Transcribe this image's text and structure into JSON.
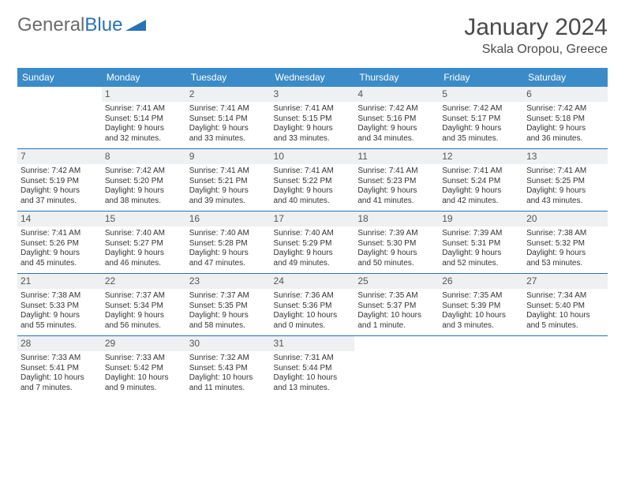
{
  "brand": {
    "part1": "General",
    "part2": "Blue"
  },
  "title": "January 2024",
  "location": "Skala Oropou, Greece",
  "colors": {
    "header_bg": "#3b8bc8",
    "header_text": "#ffffff",
    "border": "#2a72b5",
    "daynum_bg": "#eef0f1",
    "text": "#333333",
    "brand_gray": "#6b6b6b",
    "brand_blue": "#2a72b5"
  },
  "weekdays": [
    "Sunday",
    "Monday",
    "Tuesday",
    "Wednesday",
    "Thursday",
    "Friday",
    "Saturday"
  ],
  "weeks": [
    [
      null,
      {
        "n": "1",
        "sr": "Sunrise: 7:41 AM",
        "ss": "Sunset: 5:14 PM",
        "d1": "Daylight: 9 hours",
        "d2": "and 32 minutes."
      },
      {
        "n": "2",
        "sr": "Sunrise: 7:41 AM",
        "ss": "Sunset: 5:14 PM",
        "d1": "Daylight: 9 hours",
        "d2": "and 33 minutes."
      },
      {
        "n": "3",
        "sr": "Sunrise: 7:41 AM",
        "ss": "Sunset: 5:15 PM",
        "d1": "Daylight: 9 hours",
        "d2": "and 33 minutes."
      },
      {
        "n": "4",
        "sr": "Sunrise: 7:42 AM",
        "ss": "Sunset: 5:16 PM",
        "d1": "Daylight: 9 hours",
        "d2": "and 34 minutes."
      },
      {
        "n": "5",
        "sr": "Sunrise: 7:42 AM",
        "ss": "Sunset: 5:17 PM",
        "d1": "Daylight: 9 hours",
        "d2": "and 35 minutes."
      },
      {
        "n": "6",
        "sr": "Sunrise: 7:42 AM",
        "ss": "Sunset: 5:18 PM",
        "d1": "Daylight: 9 hours",
        "d2": "and 36 minutes."
      }
    ],
    [
      {
        "n": "7",
        "sr": "Sunrise: 7:42 AM",
        "ss": "Sunset: 5:19 PM",
        "d1": "Daylight: 9 hours",
        "d2": "and 37 minutes."
      },
      {
        "n": "8",
        "sr": "Sunrise: 7:42 AM",
        "ss": "Sunset: 5:20 PM",
        "d1": "Daylight: 9 hours",
        "d2": "and 38 minutes."
      },
      {
        "n": "9",
        "sr": "Sunrise: 7:41 AM",
        "ss": "Sunset: 5:21 PM",
        "d1": "Daylight: 9 hours",
        "d2": "and 39 minutes."
      },
      {
        "n": "10",
        "sr": "Sunrise: 7:41 AM",
        "ss": "Sunset: 5:22 PM",
        "d1": "Daylight: 9 hours",
        "d2": "and 40 minutes."
      },
      {
        "n": "11",
        "sr": "Sunrise: 7:41 AM",
        "ss": "Sunset: 5:23 PM",
        "d1": "Daylight: 9 hours",
        "d2": "and 41 minutes."
      },
      {
        "n": "12",
        "sr": "Sunrise: 7:41 AM",
        "ss": "Sunset: 5:24 PM",
        "d1": "Daylight: 9 hours",
        "d2": "and 42 minutes."
      },
      {
        "n": "13",
        "sr": "Sunrise: 7:41 AM",
        "ss": "Sunset: 5:25 PM",
        "d1": "Daylight: 9 hours",
        "d2": "and 43 minutes."
      }
    ],
    [
      {
        "n": "14",
        "sr": "Sunrise: 7:41 AM",
        "ss": "Sunset: 5:26 PM",
        "d1": "Daylight: 9 hours",
        "d2": "and 45 minutes."
      },
      {
        "n": "15",
        "sr": "Sunrise: 7:40 AM",
        "ss": "Sunset: 5:27 PM",
        "d1": "Daylight: 9 hours",
        "d2": "and 46 minutes."
      },
      {
        "n": "16",
        "sr": "Sunrise: 7:40 AM",
        "ss": "Sunset: 5:28 PM",
        "d1": "Daylight: 9 hours",
        "d2": "and 47 minutes."
      },
      {
        "n": "17",
        "sr": "Sunrise: 7:40 AM",
        "ss": "Sunset: 5:29 PM",
        "d1": "Daylight: 9 hours",
        "d2": "and 49 minutes."
      },
      {
        "n": "18",
        "sr": "Sunrise: 7:39 AM",
        "ss": "Sunset: 5:30 PM",
        "d1": "Daylight: 9 hours",
        "d2": "and 50 minutes."
      },
      {
        "n": "19",
        "sr": "Sunrise: 7:39 AM",
        "ss": "Sunset: 5:31 PM",
        "d1": "Daylight: 9 hours",
        "d2": "and 52 minutes."
      },
      {
        "n": "20",
        "sr": "Sunrise: 7:38 AM",
        "ss": "Sunset: 5:32 PM",
        "d1": "Daylight: 9 hours",
        "d2": "and 53 minutes."
      }
    ],
    [
      {
        "n": "21",
        "sr": "Sunrise: 7:38 AM",
        "ss": "Sunset: 5:33 PM",
        "d1": "Daylight: 9 hours",
        "d2": "and 55 minutes."
      },
      {
        "n": "22",
        "sr": "Sunrise: 7:37 AM",
        "ss": "Sunset: 5:34 PM",
        "d1": "Daylight: 9 hours",
        "d2": "and 56 minutes."
      },
      {
        "n": "23",
        "sr": "Sunrise: 7:37 AM",
        "ss": "Sunset: 5:35 PM",
        "d1": "Daylight: 9 hours",
        "d2": "and 58 minutes."
      },
      {
        "n": "24",
        "sr": "Sunrise: 7:36 AM",
        "ss": "Sunset: 5:36 PM",
        "d1": "Daylight: 10 hours",
        "d2": "and 0 minutes."
      },
      {
        "n": "25",
        "sr": "Sunrise: 7:35 AM",
        "ss": "Sunset: 5:37 PM",
        "d1": "Daylight: 10 hours",
        "d2": "and 1 minute."
      },
      {
        "n": "26",
        "sr": "Sunrise: 7:35 AM",
        "ss": "Sunset: 5:39 PM",
        "d1": "Daylight: 10 hours",
        "d2": "and 3 minutes."
      },
      {
        "n": "27",
        "sr": "Sunrise: 7:34 AM",
        "ss": "Sunset: 5:40 PM",
        "d1": "Daylight: 10 hours",
        "d2": "and 5 minutes."
      }
    ],
    [
      {
        "n": "28",
        "sr": "Sunrise: 7:33 AM",
        "ss": "Sunset: 5:41 PM",
        "d1": "Daylight: 10 hours",
        "d2": "and 7 minutes."
      },
      {
        "n": "29",
        "sr": "Sunrise: 7:33 AM",
        "ss": "Sunset: 5:42 PM",
        "d1": "Daylight: 10 hours",
        "d2": "and 9 minutes."
      },
      {
        "n": "30",
        "sr": "Sunrise: 7:32 AM",
        "ss": "Sunset: 5:43 PM",
        "d1": "Daylight: 10 hours",
        "d2": "and 11 minutes."
      },
      {
        "n": "31",
        "sr": "Sunrise: 7:31 AM",
        "ss": "Sunset: 5:44 PM",
        "d1": "Daylight: 10 hours",
        "d2": "and 13 minutes."
      },
      null,
      null,
      null
    ]
  ]
}
